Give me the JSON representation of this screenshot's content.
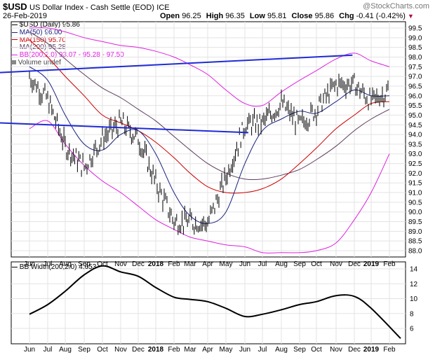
{
  "header": {
    "symbol": "$USD",
    "name": "US Dollar Index - Cash Settle (EOD)",
    "exchange": "ICE",
    "watermark": "@StockCharts.com",
    "date": "26-Feb-2019",
    "ohlc": [
      {
        "label": "Open",
        "value": "96.25"
      },
      {
        "label": "High",
        "value": "96.35"
      },
      {
        "label": "Low",
        "value": "95.81"
      },
      {
        "label": "Close",
        "value": "95.86"
      }
    ],
    "chg_label": "Chg",
    "chg_value": "-0.41 (-0.42%)",
    "chg_arrow": "▼"
  },
  "legend": [
    {
      "text": "$USD (Daily) 95.86",
      "color": "#000000",
      "kind": "price"
    },
    {
      "text": "MA(50) 96.00",
      "color": "#1a237e",
      "kind": "line"
    },
    {
      "text": "MA(150) 95.70",
      "color": "#cc0000",
      "kind": "line"
    },
    {
      "text": "MA(200) 95.28",
      "color": "#5c3d5e",
      "kind": "line"
    },
    {
      "text": "BB(200,2.0) 93.07 - 95.28 - 97.50",
      "color": "#e020e0",
      "kind": "line"
    },
    {
      "text": "Volume undef",
      "color": "#444444",
      "kind": "bar"
    }
  ],
  "lower_panel": {
    "label": "BB Width(200,2.0) 4.653"
  },
  "x_ticks": [
    "Jun",
    "Jul",
    "Aug",
    "Sep",
    "Oct",
    "Nov",
    "Dec",
    "2018",
    "Feb",
    "Mar",
    "Apr",
    "May",
    "Jun",
    "Jul",
    "Aug",
    "Sep",
    "Oct",
    "Nov",
    "Dec",
    "2019",
    "Feb"
  ],
  "chart_data": [
    {
      "type": "line",
      "title": "$USD US Dollar Index - Cash Settle (EOD) ICE",
      "ylim": [
        88.0,
        99.5
      ],
      "y_ticks": [
        "88.0",
        "88.5",
        "89.0",
        "89.5",
        "90.0",
        "90.5",
        "91.0",
        "91.5",
        "92.0",
        "92.5",
        "93.0",
        "93.5",
        "94.0",
        "94.5",
        "95.0",
        "95.5",
        "96.0",
        "96.5",
        "97.0",
        "97.5",
        "98.0",
        "98.5",
        "99.0",
        "99.5"
      ],
      "x": [
        "Jun",
        "Jul",
        "Aug",
        "Sep",
        "Oct",
        "Nov",
        "Dec",
        "2018",
        "Feb",
        "Mar",
        "Apr",
        "May",
        "Jun",
        "Jul",
        "Aug",
        "Sep",
        "Oct",
        "Nov",
        "Dec",
        "2019",
        "Feb"
      ],
      "series": [
        {
          "name": "$USD (Daily)",
          "color": "#000000",
          "values": [
            97.0,
            95.8,
            93.4,
            92.3,
            93.8,
            94.6,
            93.8,
            91.5,
            89.5,
            89.5,
            89.4,
            91.8,
            94.5,
            94.6,
            95.6,
            94.5,
            95.3,
            96.6,
            96.6,
            95.7,
            96.3
          ]
        },
        {
          "name": "MA(50)",
          "color": "#1a237e",
          "values": [
            97.5,
            96.8,
            95.0,
            93.5,
            93.2,
            94.0,
            94.2,
            93.0,
            91.0,
            89.8,
            89.4,
            90.0,
            92.5,
            94.2,
            94.8,
            95.2,
            95.1,
            95.7,
            96.3,
            96.0,
            96.0
          ]
        },
        {
          "name": "MA(150)",
          "color": "#cc0000",
          "values": [
            98.9,
            98.0,
            97.0,
            96.0,
            95.0,
            94.6,
            94.2,
            93.6,
            92.8,
            92.0,
            91.3,
            91.0,
            91.0,
            91.2,
            91.7,
            92.5,
            93.3,
            94.3,
            95.0,
            95.6,
            95.7
          ]
        },
        {
          "name": "MA(200)",
          "color": "#5c3d5e",
          "values": [
            99.3,
            98.7,
            97.9,
            97.1,
            96.4,
            95.9,
            95.3,
            94.7,
            93.9,
            93.2,
            92.5,
            92.0,
            91.7,
            91.7,
            91.9,
            92.2,
            92.7,
            93.4,
            94.2,
            94.8,
            95.3
          ]
        },
        {
          "name": "BB upper",
          "color": "#e020e0",
          "values": [
            99.5,
            99.5,
            99.3,
            99.0,
            98.8,
            98.6,
            98.5,
            98.3,
            98.0,
            97.6,
            97.1,
            96.3,
            95.6,
            95.5,
            96.2,
            96.8,
            97.3,
            97.9,
            98.2,
            97.8,
            97.5
          ]
        },
        {
          "name": "BB lower",
          "color": "#e020e0",
          "values": [
            94.3,
            94.7,
            93.5,
            92.4,
            91.6,
            91.0,
            90.3,
            89.6,
            89.1,
            88.7,
            88.5,
            88.3,
            88.2,
            87.9,
            87.9,
            87.9,
            88.0,
            88.4,
            89.6,
            91.0,
            93.0
          ]
        }
      ],
      "trendlines": [
        {
          "name": "upper trendline",
          "color": "#1f2bd6",
          "from": [
            17.9,
            98.1
          ],
          "to": [
            21.0,
            97.2
          ]
        },
        {
          "name": "lower trendline",
          "color": "#1f2bd6",
          "from": [
            12.2,
            94.1
          ],
          "to": [
            21.0,
            94.6
          ]
        }
      ]
    },
    {
      "type": "line",
      "title": "BB Width(200,2.0) 4.653",
      "ylim": [
        3.5,
        15
      ],
      "y_ticks": [
        "6",
        "8",
        "10",
        "12",
        "14"
      ],
      "x": [
        "Jun",
        "Jul",
        "Aug",
        "Sep",
        "Oct",
        "Nov",
        "Dec",
        "2018",
        "Feb",
        "Mar",
        "Apr",
        "May",
        "Jun",
        "Jul",
        "Aug",
        "Sep",
        "Oct",
        "Nov",
        "Dec",
        "2019",
        "Feb"
      ],
      "series": [
        {
          "name": "BB Width(200,2.0)",
          "color": "#000000",
          "values": [
            7.9,
            9.2,
            11.0,
            13.2,
            14.4,
            13.6,
            13.0,
            11.5,
            10.2,
            9.9,
            9.6,
            8.7,
            7.6,
            7.9,
            8.5,
            9.2,
            9.6,
            10.4,
            10.3,
            8.7,
            4.65
          ]
        }
      ]
    }
  ]
}
